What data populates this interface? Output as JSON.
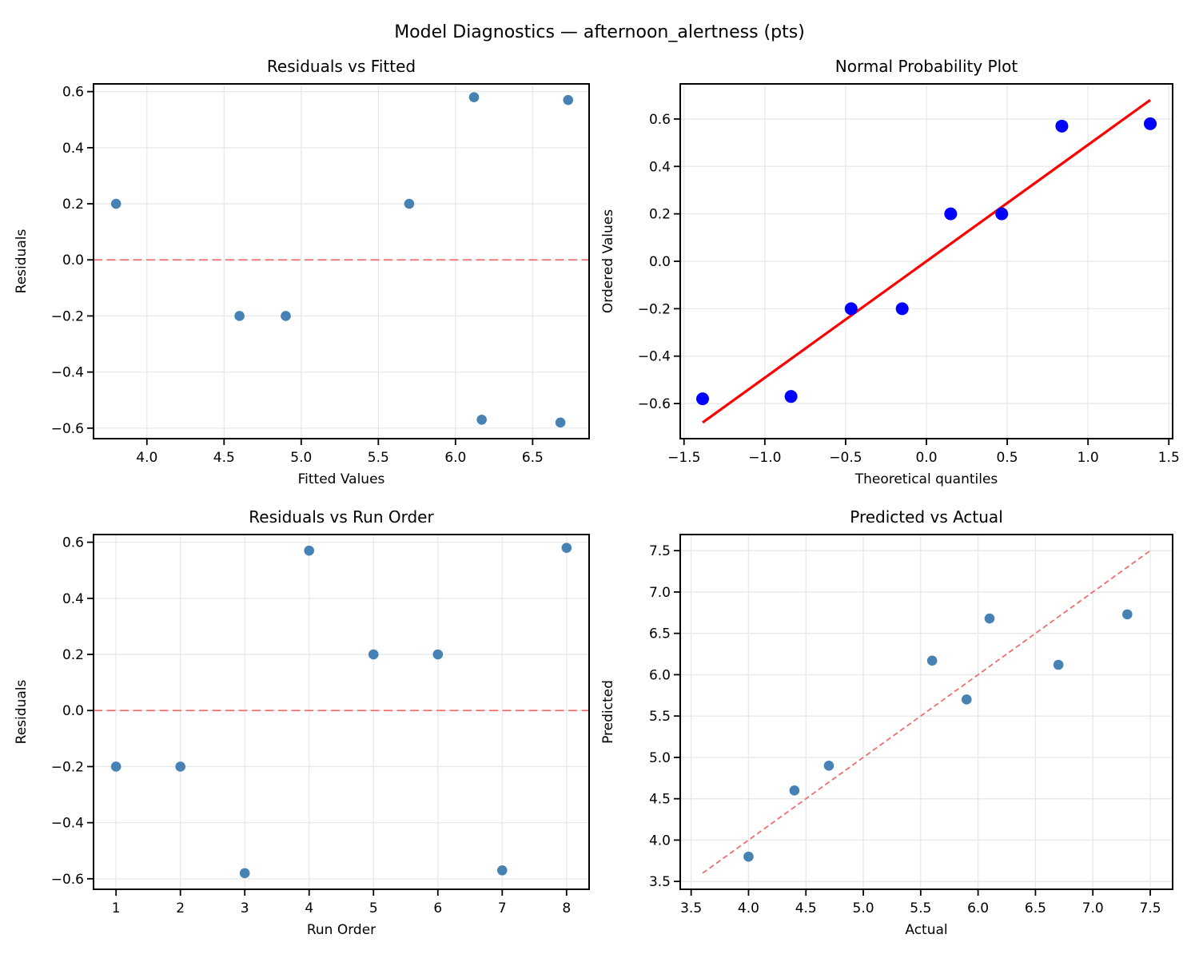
{
  "suptitle": "Model Diagnostics — afternoon_alertness (pts)",
  "colors": {
    "scatter_marker": "#4682B4",
    "probplot_marker": "#0000FF",
    "probplot_fit_line": "#FF0000",
    "reference_dash_line": "#F26E6E",
    "grid": "#E8E8E8",
    "spine": "#000000"
  },
  "chart_data": [
    {
      "id": "residuals-vs-fitted",
      "type": "scatter",
      "title": "Residuals vs Fitted",
      "xlabel": "Fitted Values",
      "ylabel": "Residuals",
      "xlim": [
        3.654,
        6.866
      ],
      "ylim": [
        -0.6375,
        0.6275
      ],
      "grid": true,
      "xticks": [
        4.0,
        4.5,
        5.0,
        5.5,
        6.0,
        6.5
      ],
      "xtick_labels": [
        "4.0",
        "4.5",
        "5.0",
        "5.5",
        "6.0",
        "6.5"
      ],
      "yticks": [
        -0.6,
        -0.4,
        -0.2,
        0.0,
        0.2,
        0.4,
        0.6
      ],
      "ytick_labels": [
        "−0.6",
        "−0.4",
        "−0.2",
        "0.0",
        "0.2",
        "0.4",
        "0.6"
      ],
      "points": [
        [
          3.8,
          0.2
        ],
        [
          4.6,
          -0.2
        ],
        [
          4.9,
          -0.2
        ],
        [
          5.7,
          0.2
        ],
        [
          6.12,
          0.58
        ],
        [
          6.17,
          -0.57
        ],
        [
          6.68,
          -0.58
        ],
        [
          6.73,
          0.57
        ]
      ],
      "marker_color": "#4682B4",
      "marker_radius": 6.3,
      "lines": [
        {
          "kind": "hline",
          "y": 0,
          "color": "#F26E6E",
          "width": 1.8,
          "dash": "11,5.5",
          "name": "zero-reference-line"
        }
      ]
    },
    {
      "id": "normal-probability-plot",
      "type": "scatter",
      "title": "Normal Probability Plot",
      "xlabel": "Theoretical quantiles",
      "ylabel": "Ordered Values",
      "xlim": [
        -1.5235,
        1.5235
      ],
      "ylim": [
        -0.748,
        0.748
      ],
      "grid": true,
      "xticks": [
        -1.5,
        -1.0,
        -0.5,
        0.0,
        0.5,
        1.0,
        1.5
      ],
      "xtick_labels": [
        "−1.5",
        "−1.0",
        "−0.5",
        "0.0",
        "0.5",
        "1.0",
        "1.5"
      ],
      "yticks": [
        -0.6,
        -0.4,
        -0.2,
        0.0,
        0.2,
        0.4,
        0.6
      ],
      "ytick_labels": [
        "−0.6",
        "−0.4",
        "−0.2",
        "0.0",
        "0.2",
        "0.4",
        "0.6"
      ],
      "points": [
        [
          -1.385,
          -0.58
        ],
        [
          -0.838,
          -0.57
        ],
        [
          -0.466,
          -0.2
        ],
        [
          -0.15,
          -0.2
        ],
        [
          0.15,
          0.2
        ],
        [
          0.466,
          0.2
        ],
        [
          0.838,
          0.57
        ],
        [
          1.385,
          0.58
        ]
      ],
      "marker_color": "#0000FF",
      "marker_radius": 8,
      "lines": [
        {
          "kind": "segment",
          "x1": -1.385,
          "y1": -0.68,
          "x2": 1.385,
          "y2": 0.68,
          "color": "#FF0000",
          "width": 3.2,
          "dash": "",
          "name": "fit-line"
        }
      ]
    },
    {
      "id": "residuals-vs-run-order",
      "type": "scatter",
      "title": "Residuals vs Run Order",
      "xlabel": "Run Order",
      "ylabel": "Residuals",
      "xlim": [
        0.65,
        8.35
      ],
      "ylim": [
        -0.6375,
        0.6275
      ],
      "grid": true,
      "xticks": [
        1,
        2,
        3,
        4,
        5,
        6,
        7,
        8
      ],
      "xtick_labels": [
        "1",
        "2",
        "3",
        "4",
        "5",
        "6",
        "7",
        "8"
      ],
      "yticks": [
        -0.6,
        -0.4,
        -0.2,
        0.0,
        0.2,
        0.4,
        0.6
      ],
      "ytick_labels": [
        "−0.6",
        "−0.4",
        "−0.2",
        "0.0",
        "0.2",
        "0.4",
        "0.6"
      ],
      "points": [
        [
          1,
          -0.2
        ],
        [
          2,
          -0.2
        ],
        [
          3,
          -0.58
        ],
        [
          4,
          0.57
        ],
        [
          5,
          0.2
        ],
        [
          6,
          0.2
        ],
        [
          7,
          -0.57
        ],
        [
          8,
          0.58
        ]
      ],
      "marker_color": "#4682B4",
      "marker_radius": 6.3,
      "lines": [
        {
          "kind": "hline",
          "y": 0,
          "color": "#F26E6E",
          "width": 1.8,
          "dash": "11,5.5",
          "name": "zero-reference-line"
        }
      ]
    },
    {
      "id": "predicted-vs-actual",
      "type": "scatter",
      "title": "Predicted vs Actual",
      "xlabel": "Actual",
      "ylabel": "Predicted",
      "xlim": [
        3.405,
        7.695
      ],
      "ylim": [
        3.405,
        7.695
      ],
      "grid": true,
      "xticks": [
        3.5,
        4.0,
        4.5,
        5.0,
        5.5,
        6.0,
        6.5,
        7.0,
        7.5
      ],
      "xtick_labels": [
        "3.5",
        "4.0",
        "4.5",
        "5.0",
        "5.5",
        "6.0",
        "6.5",
        "7.0",
        "7.5"
      ],
      "yticks": [
        3.5,
        4.0,
        4.5,
        5.0,
        5.5,
        6.0,
        6.5,
        7.0,
        7.5
      ],
      "ytick_labels": [
        "3.5",
        "4.0",
        "4.5",
        "5.0",
        "5.5",
        "6.0",
        "6.5",
        "7.0",
        "7.5"
      ],
      "points": [
        [
          4.0,
          3.8
        ],
        [
          4.4,
          4.6
        ],
        [
          4.7,
          4.9
        ],
        [
          5.6,
          6.17
        ],
        [
          5.9,
          5.7
        ],
        [
          6.1,
          6.68
        ],
        [
          6.7,
          6.12
        ],
        [
          7.3,
          6.73
        ]
      ],
      "marker_color": "#4682B4",
      "marker_radius": 6.3,
      "lines": [
        {
          "kind": "segment",
          "x1": 3.6,
          "y1": 3.6,
          "x2": 7.5,
          "y2": 7.5,
          "color": "#F26E6E",
          "width": 1.8,
          "dash": "6.5,4",
          "name": "identity-line"
        }
      ]
    }
  ]
}
